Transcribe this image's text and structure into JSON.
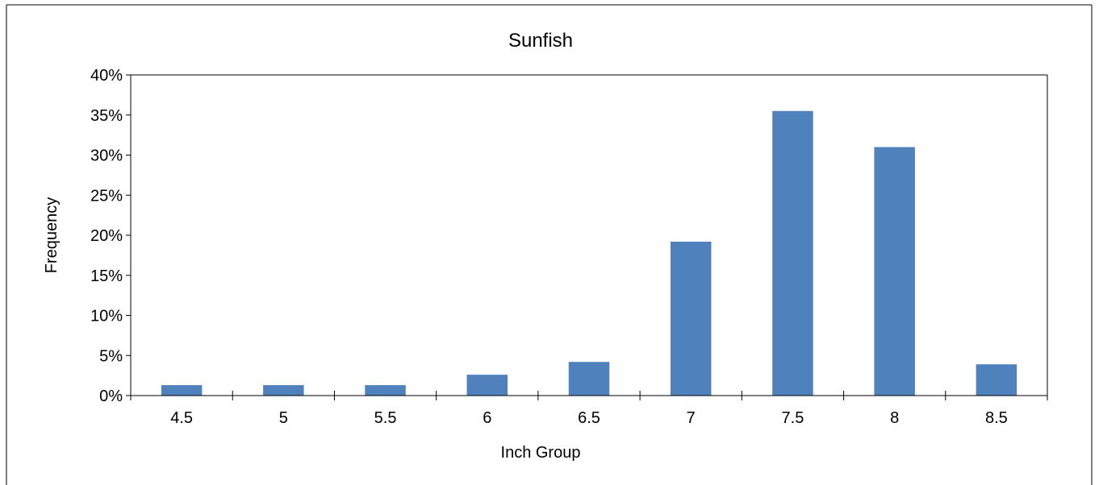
{
  "chart_data": {
    "type": "bar",
    "title": "Sunfish",
    "xlabel": "Inch Group",
    "ylabel": "Frequency",
    "categories": [
      "4.5",
      "5",
      "5.5",
      "6",
      "6.5",
      "7",
      "7.5",
      "8",
      "8.5"
    ],
    "values": [
      1.3,
      1.3,
      1.3,
      2.6,
      4.2,
      19.2,
      35.5,
      31.0,
      3.9
    ],
    "ylim": [
      0,
      40
    ],
    "yticks": [
      "0%",
      "5%",
      "10%",
      "15%",
      "20%",
      "25%",
      "30%",
      "35%",
      "40%"
    ],
    "grid": false,
    "legend": "none",
    "colors": {
      "bar": "#4f81bd",
      "axis": "#000000",
      "border": "#000000"
    }
  }
}
